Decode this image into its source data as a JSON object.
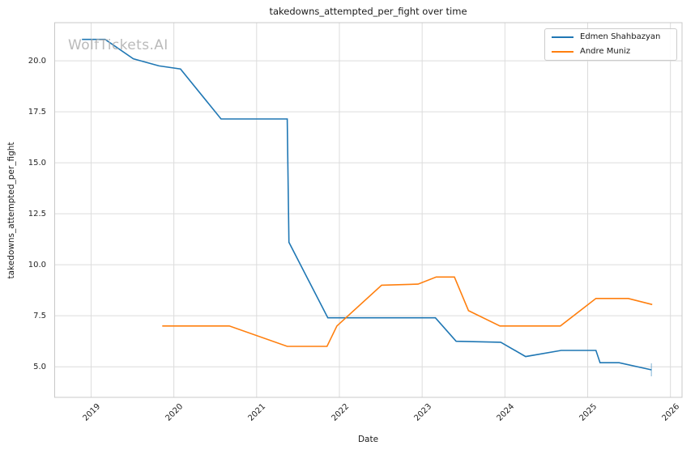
{
  "watermark": "WolfTickets.AI",
  "chart_data": {
    "type": "line",
    "title": "takedowns_attempted_per_fight over time",
    "xlabel": "Date",
    "ylabel": "takedowns_attempted_per_fight",
    "x_ticks": [
      2019,
      2020,
      2021,
      2022,
      2023,
      2024,
      2025,
      2026
    ],
    "y_ticks": [
      5.0,
      7.5,
      10.0,
      12.5,
      15.0,
      17.5,
      20.0
    ],
    "x_range": [
      2018.56,
      2026.14
    ],
    "y_range": [
      3.5,
      21.87
    ],
    "grid": true,
    "grid_color": "#dcdcdc",
    "border_color": "#c8c8c8",
    "legend_position": "upper right",
    "series": [
      {
        "name": "Edmen Shahbazyan",
        "color": "#1f77b4",
        "x": [
          2018.89,
          2019.17,
          2019.51,
          2019.82,
          2020.08,
          2020.57,
          2021.37,
          2021.39,
          2021.86,
          2023.16,
          2023.41,
          2023.95,
          2024.25,
          2024.68,
          2025.1,
          2025.15,
          2025.38,
          2025.77
        ],
        "y": [
          21.05,
          21.05,
          20.1,
          19.75,
          19.6,
          17.15,
          17.15,
          11.1,
          7.4,
          7.4,
          6.25,
          6.2,
          5.5,
          5.8,
          5.8,
          5.2,
          5.2,
          4.85
        ],
        "end_tick": true
      },
      {
        "name": "Andre Muniz",
        "color": "#ff7f0e",
        "x": [
          2019.86,
          2020.67,
          2021.37,
          2021.85,
          2021.97,
          2022.51,
          2022.95,
          2023.17,
          2023.39,
          2023.56,
          2023.94,
          2024.67,
          2025.1,
          2025.49,
          2025.78
        ],
        "y": [
          7.0,
          7.0,
          6.0,
          6.0,
          7.0,
          9.0,
          9.05,
          9.4,
          9.4,
          7.75,
          7.0,
          7.0,
          8.35,
          8.35,
          8.05
        ],
        "end_tick": false
      }
    ]
  }
}
